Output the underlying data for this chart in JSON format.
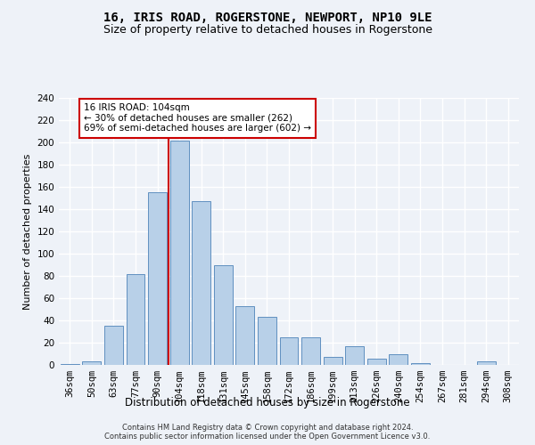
{
  "title": "16, IRIS ROAD, ROGERSTONE, NEWPORT, NP10 9LE",
  "subtitle": "Size of property relative to detached houses in Rogerstone",
  "xlabel": "Distribution of detached houses by size in Rogerstone",
  "ylabel": "Number of detached properties",
  "categories": [
    "36sqm",
    "50sqm",
    "63sqm",
    "77sqm",
    "90sqm",
    "104sqm",
    "118sqm",
    "131sqm",
    "145sqm",
    "158sqm",
    "172sqm",
    "186sqm",
    "199sqm",
    "213sqm",
    "226sqm",
    "240sqm",
    "254sqm",
    "267sqm",
    "281sqm",
    "294sqm",
    "308sqm"
  ],
  "values": [
    1,
    3,
    35,
    82,
    155,
    202,
    147,
    90,
    53,
    43,
    25,
    25,
    7,
    17,
    6,
    10,
    2,
    0,
    0,
    3,
    0
  ],
  "bar_color": "#b8d0e8",
  "bar_edge_color": "#6090c0",
  "vline_index": 5,
  "vline_color": "#cc0000",
  "annotation_text": "16 IRIS ROAD: 104sqm\n← 30% of detached houses are smaller (262)\n69% of semi-detached houses are larger (602) →",
  "annotation_box_facecolor": "#ffffff",
  "annotation_box_edgecolor": "#cc0000",
  "ylim": [
    0,
    240
  ],
  "yticks": [
    0,
    20,
    40,
    60,
    80,
    100,
    120,
    140,
    160,
    180,
    200,
    220,
    240
  ],
  "bg_color": "#eef2f8",
  "grid_color": "#ffffff",
  "title_fontsize": 10,
  "subtitle_fontsize": 9,
  "axis_label_fontsize": 8,
  "tick_fontsize": 7.5,
  "footer_line1": "Contains HM Land Registry data © Crown copyright and database right 2024.",
  "footer_line2": "Contains public sector information licensed under the Open Government Licence v3.0."
}
